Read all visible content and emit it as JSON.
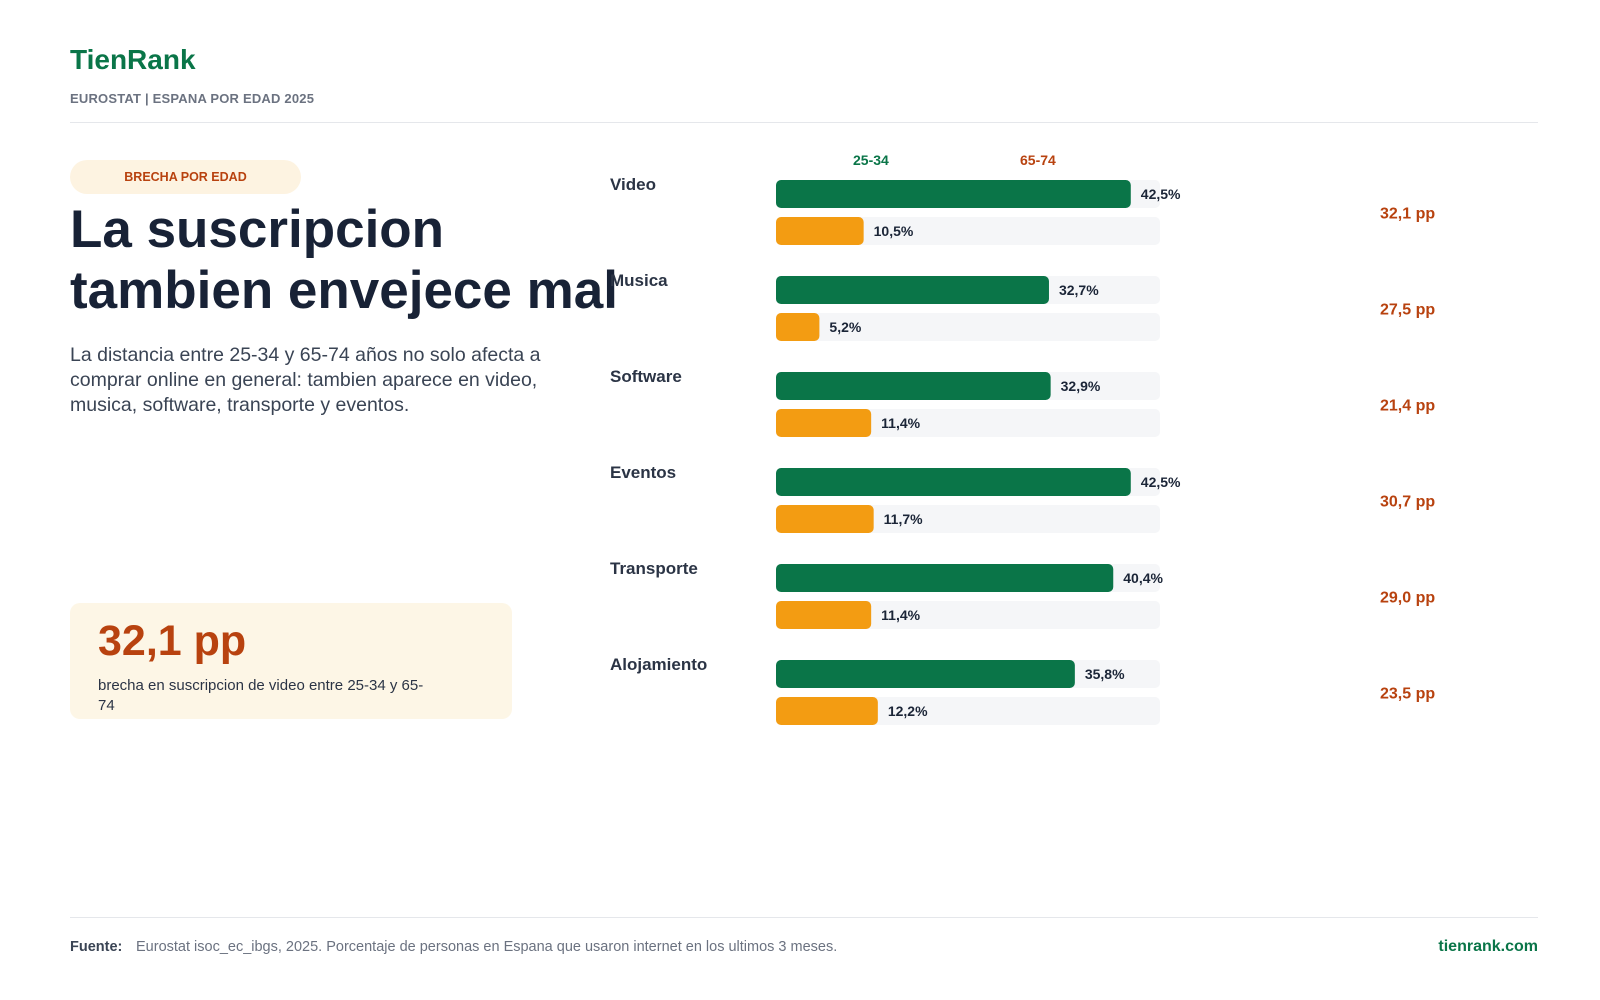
{
  "header": {
    "brand": "TienRank",
    "subtitle": "EUROSTAT | ESPANA POR EDAD 2025"
  },
  "intro": {
    "tag": "BRECHA POR EDAD",
    "headline_line1": "La suscripcion",
    "headline_line2": "tambien envejece mal",
    "description": "La distancia entre 25-34 y 65-74 años no solo afecta a comprar online en general: tambien aparece en video, musica, software, transporte y eventos."
  },
  "kpi": {
    "value": "32,1 pp",
    "label": "brecha en suscripcion de video entre 25-34 y 65-74"
  },
  "colors": {
    "young": "#0a7548",
    "old": "#f39c12",
    "track": "#f5f6f8",
    "gap": "#b8420f",
    "category": "#2b3445",
    "value": "#1b2537"
  },
  "chart_data": {
    "type": "bar",
    "orientation": "horizontal",
    "categories": [
      "Video",
      "Musica",
      "Software",
      "Eventos",
      "Transporte",
      "Alojamiento"
    ],
    "series": [
      {
        "name": "25-34",
        "values": [
          42.5,
          32.7,
          32.9,
          42.5,
          40.4,
          35.8
        ],
        "labels": [
          "42,5%",
          "32,7%",
          "32,9%",
          "42,5%",
          "40,4%",
          "35,8%"
        ]
      },
      {
        "name": "65-74",
        "values": [
          10.5,
          5.2,
          11.4,
          11.7,
          11.4,
          12.2
        ],
        "labels": [
          "10,5%",
          "5,2%",
          "11,4%",
          "11,7%",
          "11,4%",
          "12,2%"
        ]
      }
    ],
    "gaps": [
      "32,1 pp",
      "27,5 pp",
      "21,4 pp",
      "30,7 pp",
      "29,0 pp",
      "23,5 pp"
    ],
    "xlim": [
      0,
      46
    ],
    "legend_position": "top",
    "grid": false
  },
  "footer": {
    "source_label": "Fuente:",
    "source_text": "Eurostat isoc_ec_ibgs, 2025. Porcentaje de personas en Espana que usaron internet en los ultimos 3 meses.",
    "site": "tienrank.com"
  }
}
